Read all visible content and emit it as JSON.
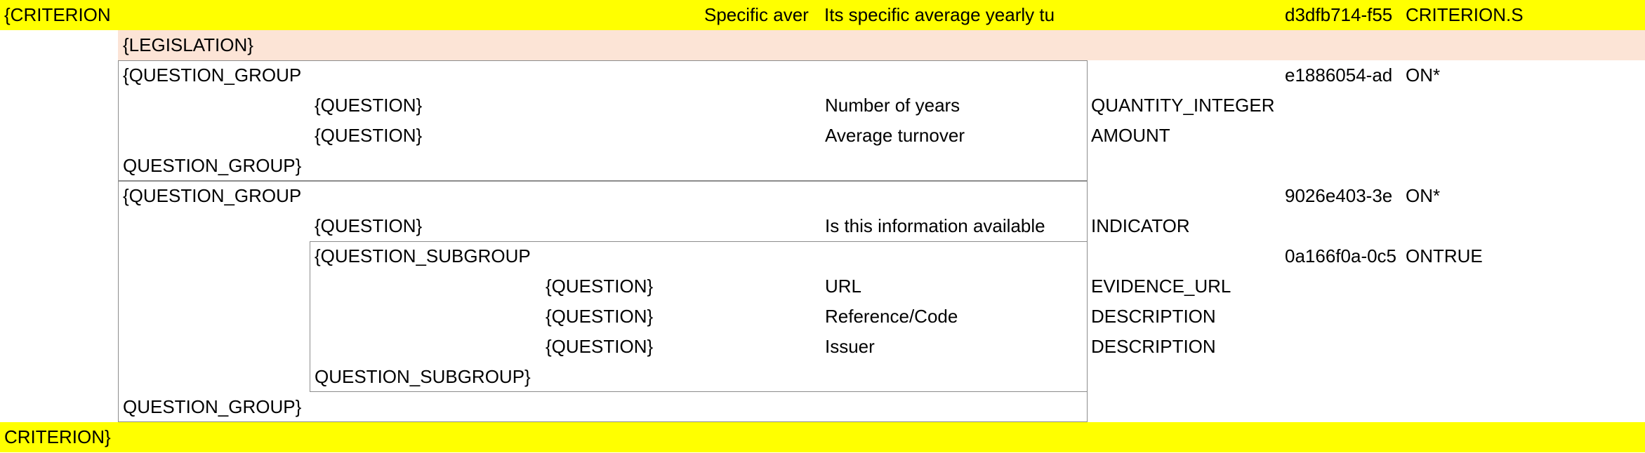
{
  "colors": {
    "criterion_row": "#ffff00",
    "legislation_row": "#fce4d6",
    "border": "#8c8c8c"
  },
  "criterion": {
    "open": "{CRITERION",
    "name_truncated": "Specific aver",
    "description_truncated": "Its specific average yearly tu",
    "uuid_truncated": "d3dfb714-f55",
    "code_truncated": "CRITERION.S",
    "close": "CRITERION}"
  },
  "legislation": {
    "open": "{LEGISLATION}"
  },
  "group1": {
    "open": "{QUESTION_GROUP",
    "close": "QUESTION_GROUP}",
    "uuid_truncated": "e1886054-ad",
    "cardinality": "ON*",
    "questions": [
      {
        "tag": "{QUESTION}",
        "label": "Number of years",
        "type": "QUANTITY_INTEGER"
      },
      {
        "tag": "{QUESTION}",
        "label": "Average turnover",
        "type": "AMOUNT"
      }
    ]
  },
  "group2": {
    "open": "{QUESTION_GROUP",
    "close": "QUESTION_GROUP}",
    "uuid_truncated": "9026e403-3e",
    "cardinality": "ON*",
    "question": {
      "tag": "{QUESTION}",
      "label": "Is this information available",
      "type": "INDICATOR"
    },
    "subgroup": {
      "open": "{QUESTION_SUBGROUP",
      "close": "QUESTION_SUBGROUP}",
      "uuid_truncated": "0a166f0a-0c5",
      "cardinality": "ONTRUE",
      "questions": [
        {
          "tag": "{QUESTION}",
          "label": "URL",
          "type": "EVIDENCE_URL"
        },
        {
          "tag": "{QUESTION}",
          "label": "Reference/Code",
          "type": "DESCRIPTION"
        },
        {
          "tag": "{QUESTION}",
          "label": "Issuer",
          "type": "DESCRIPTION"
        }
      ]
    }
  }
}
